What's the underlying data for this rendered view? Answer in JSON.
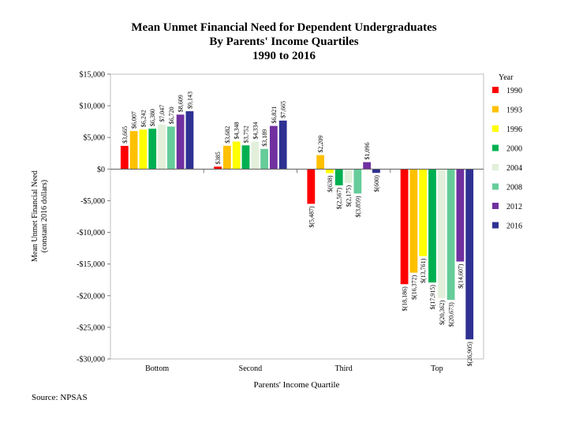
{
  "chart_data": {
    "type": "bar",
    "title": [
      "Mean Unmet Financial Need for Dependent Undergraduates",
      "By Parents' Income Quartiles",
      "1990 to 2016"
    ],
    "xlabel": "Parents' Income Quartile",
    "ylabel": [
      "Mean Unmet Financial Need",
      "(constant 2016 dollars)"
    ],
    "ylim": [
      -30000,
      15000
    ],
    "yticks": [
      15000,
      10000,
      5000,
      0,
      -5000,
      -10000,
      -15000,
      -20000,
      -25000,
      -30000
    ],
    "ytick_labels": [
      "$15,000",
      "$10,000",
      "$5,000",
      "$0",
      "-$5,000",
      "-$10,000",
      "-$15,000",
      "-$20,000",
      "-$25,000",
      "-$30,000"
    ],
    "categories": [
      "Bottom",
      "Second",
      "Third",
      "Top"
    ],
    "legend_title": "Year",
    "legend_position": "right",
    "series": [
      {
        "name": "1990",
        "color": "#ff0000",
        "values": [
          3665,
          385,
          -5487,
          -18186
        ],
        "labels": [
          "$3,665",
          "$385",
          "$(5,487)",
          "$(18,186)"
        ]
      },
      {
        "name": "1993",
        "color": "#ffc000",
        "values": [
          6007,
          3682,
          2209,
          -16372
        ],
        "labels": [
          "$6,007",
          "$3,682",
          "$2,209",
          "$(16,372)"
        ]
      },
      {
        "name": "1996",
        "color": "#ffff00",
        "values": [
          6242,
          4348,
          -638,
          -13761
        ],
        "labels": [
          "$6,242",
          "$4,348",
          "$(638)",
          "$(13,761)"
        ]
      },
      {
        "name": "2000",
        "color": "#00b050",
        "values": [
          6380,
          3752,
          -2567,
          -17915
        ],
        "labels": [
          "$6,380",
          "$3,752",
          "$(2,567)",
          "$(17,915)"
        ]
      },
      {
        "name": "2004",
        "color": "#e2efda",
        "values": [
          7047,
          4334,
          -2175,
          -20362
        ],
        "labels": [
          "$7,047",
          "$4,334",
          "$(2,175)",
          "$(20,362)"
        ]
      },
      {
        "name": "2008",
        "color": "#66cc99",
        "values": [
          6720,
          3189,
          -3859,
          -20673
        ],
        "labels": [
          "$6,720",
          "$3,189",
          "$(3,859)",
          "$(20,673)"
        ]
      },
      {
        "name": "2012",
        "color": "#7030a0",
        "values": [
          8609,
          6821,
          1096,
          -14607
        ],
        "labels": [
          "$8,609",
          "$6,821",
          "$1,096",
          "$(14,607)"
        ]
      },
      {
        "name": "2016",
        "color": "#2e3192",
        "values": [
          9143,
          7665,
          -600,
          -26905
        ],
        "labels": [
          "$9,143",
          "$7,665",
          "$(600)",
          "$(26,905)"
        ]
      }
    ]
  },
  "footer": {
    "source": "Source: NPSAS"
  }
}
